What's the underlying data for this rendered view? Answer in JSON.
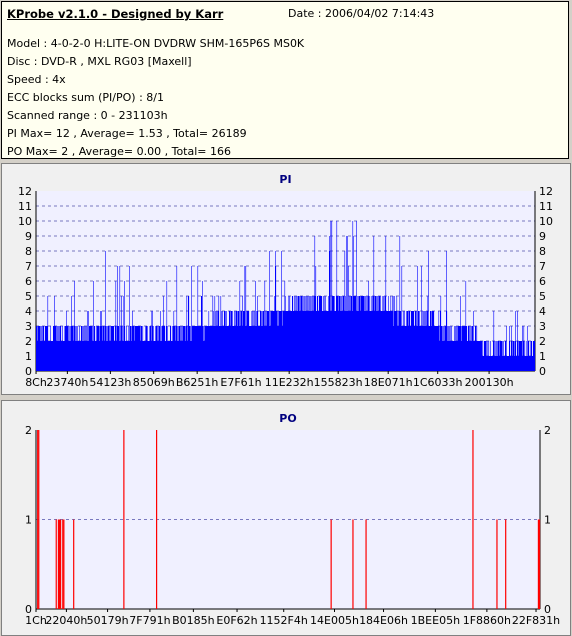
{
  "header": {
    "title": "KProbe v2.1.0 - Designed by Karr",
    "date": "Date : 2006/04/02 7:14:43",
    "lines": [
      "Model : 4-0-2-0 H:LITE-ON DVDRW SHM-165P6S MS0K",
      "Disc : DVD-R , MXL RG03 [Maxell]",
      "Speed : 4x",
      "ECC blocks sum (PI/PO) : 8/1",
      "Scanned range : 0 - 231103h",
      "PI Max= 12 , Average= 1.53 , Total= 26189",
      "PO Max= 2 , Average= 0.00 , Total= 166"
    ]
  },
  "colors": {
    "pi_bar": "#0000ff",
    "po_bar": "#ff0000",
    "plot_bg": "#f0f0ff",
    "grid": "#000080"
  },
  "chart_data": [
    {
      "type": "bar",
      "title": "PI",
      "ylim": [
        0,
        12
      ],
      "yticks": [
        0,
        1,
        2,
        3,
        4,
        5,
        6,
        7,
        8,
        9,
        10,
        11,
        12
      ],
      "xlim": [
        0,
        231103
      ],
      "xtick_labels": [
        "8Ch",
        "23740h",
        "54123h",
        "85069h",
        "B6251h",
        "E7F61h",
        "11E232h",
        "155823h",
        "18E071h",
        "1C6033h",
        "200130h"
      ],
      "xtick_positions": [
        140,
        145216,
        344355,
        544873,
        746065,
        949089,
        1172018,
        1398819,
        1630321,
        1859635,
        2097456
      ],
      "grid": true,
      "profile_note_values": "PI error counts per ECC block across scanned range",
      "profile_x": [
        0,
        100000,
        300000,
        500000,
        700000,
        900000,
        1100000,
        1200000,
        1300000,
        1400000,
        1500000,
        1600000,
        1700000,
        1800000,
        1900000,
        2000000,
        2100000,
        2200000,
        2310000
      ],
      "profile_base": [
        2,
        2,
        2,
        2,
        2,
        3,
        3,
        4,
        4,
        4,
        4,
        4,
        3,
        3,
        2,
        2,
        1,
        1,
        1
      ],
      "profile_peak": [
        7,
        8,
        8,
        7,
        7,
        7,
        8,
        9,
        10,
        11,
        12,
        11,
        10,
        9,
        8,
        7,
        5,
        4,
        5
      ],
      "max": 12
    },
    {
      "type": "bar",
      "title": "PO",
      "ylim": [
        0,
        2
      ],
      "yticks": [
        0,
        1,
        2
      ],
      "xlim": [
        0,
        2310000
      ],
      "xtick_labels": [
        "1Ch",
        "22040h",
        "50179h",
        "7F791h",
        "B0185h",
        "E0F62h",
        "1152F4h",
        "14E005h",
        "184E06h",
        "1BEE05h",
        "1F8860h",
        "22F831h"
      ],
      "xtick_positions": [
        28,
        139328,
        328057,
        522129,
        721285,
        921442,
        1135348,
        1368069,
        1592838,
        1830405,
        2066528,
        2291761
      ],
      "grid": true,
      "bars_x": [
        5000,
        10000,
        90000,
        100000,
        105000,
        110000,
        120000,
        125000,
        170000,
        400000,
        550000,
        1350000,
        1450000,
        1510000,
        2000000,
        2110000,
        2150000,
        2300000,
        2305000
      ],
      "bars_y": [
        2,
        2,
        1,
        1,
        1,
        1,
        1,
        1,
        1,
        2,
        2,
        1,
        1,
        1,
        2,
        1,
        1,
        1,
        1
      ]
    }
  ]
}
